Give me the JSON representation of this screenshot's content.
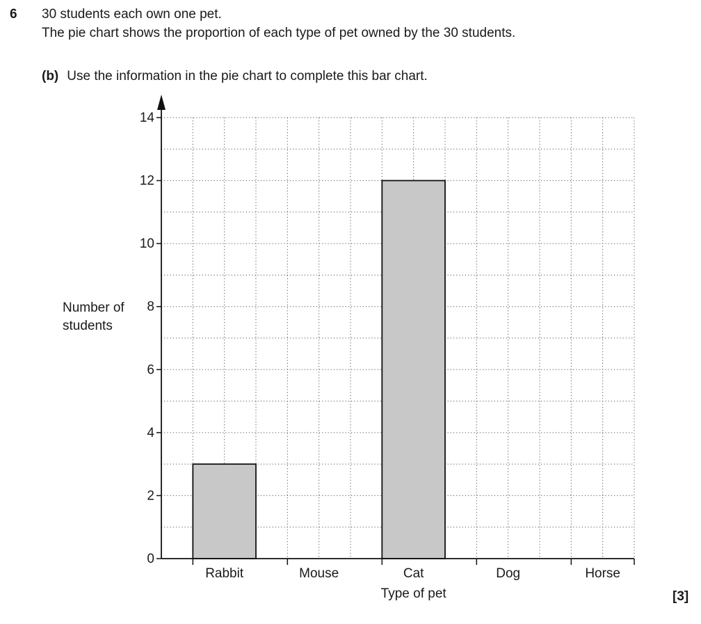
{
  "question": {
    "number": "6",
    "line1": "30 students each own one pet.",
    "line2": "The pie chart shows the proportion of each type of pet owned by the 30 students.",
    "part_label": "(b)",
    "part_text": "Use the information in the pie chart to complete this bar chart.",
    "marks": "[3]"
  },
  "chart_data": {
    "type": "bar",
    "categories": [
      "Rabbit",
      "Mouse",
      "Cat",
      "Dog",
      "Horse"
    ],
    "values": [
      3,
      null,
      12,
      null,
      null
    ],
    "xlabel": "Type of pet",
    "ylabel": [
      "Number of",
      "students"
    ],
    "ylim": [
      0,
      14
    ],
    "yticks": [
      "0",
      "2",
      "4",
      "6",
      "8",
      "10",
      "12",
      "14"
    ],
    "grid": "dotted, minor step 1",
    "bar_fill": "#c8c8c8",
    "bar_stroke": "#111111"
  }
}
